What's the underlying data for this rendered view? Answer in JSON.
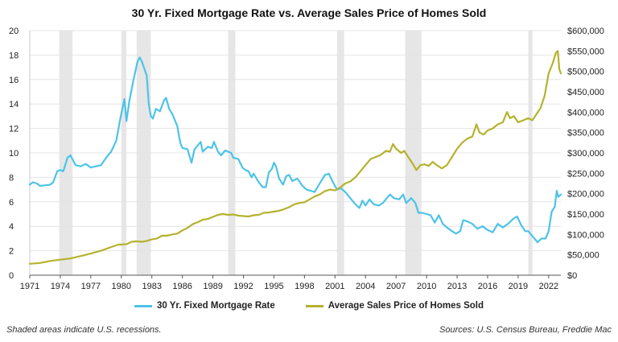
{
  "chart_data": {
    "type": "line",
    "title": "30 Yr. Fixed Mortgage Rate vs. Average Sales Price of Homes Sold",
    "footnote_left": "Shaded areas indicate U.S. recessions.",
    "footnote_right": "Sources: U.S. Census Bureau, Freddie Mac",
    "x_axis": {
      "range": [
        1971,
        2023.2
      ],
      "ticks": [
        "1971",
        "1974",
        "1977",
        "1980",
        "1983",
        "1986",
        "1989",
        "1992",
        "1995",
        "1998",
        "2001",
        "2004",
        "2007",
        "2010",
        "2013",
        "2016",
        "2019",
        "2022"
      ]
    },
    "y_left": {
      "range": [
        0,
        20
      ],
      "ticks": [
        "0",
        "2",
        "4",
        "6",
        "8",
        "10",
        "12",
        "14",
        "16",
        "18",
        "20"
      ]
    },
    "y_right": {
      "range": [
        0,
        600000
      ],
      "ticks": [
        "$0",
        "$50,000",
        "$100,000",
        "$150,000",
        "$200,000",
        "$250,000",
        "$300,000",
        "$350,000",
        "$400,000",
        "$450,000",
        "$500,000",
        "$550,000",
        "$600,000"
      ]
    },
    "recessions": [
      [
        1973.9,
        1975.2
      ],
      [
        1980.0,
        1980.5
      ],
      [
        1981.5,
        1982.9
      ],
      [
        1990.5,
        1991.2
      ],
      [
        2001.2,
        2001.9
      ],
      [
        2007.9,
        2009.5
      ],
      [
        2020.0,
        2020.4
      ]
    ],
    "grid": true,
    "legend_position": "bottom",
    "series": [
      {
        "name": "30 Yr. Fixed Mortgage Rate",
        "color": "#4dc3e8",
        "axis": "left",
        "points": [
          [
            1971.0,
            7.4
          ],
          [
            1971.3,
            7.6
          ],
          [
            1971.7,
            7.5
          ],
          [
            1972.0,
            7.3
          ],
          [
            1972.5,
            7.35
          ],
          [
            1973.0,
            7.4
          ],
          [
            1973.3,
            7.6
          ],
          [
            1973.7,
            8.5
          ],
          [
            1974.0,
            8.6
          ],
          [
            1974.3,
            8.5
          ],
          [
            1974.7,
            9.6
          ],
          [
            1975.0,
            9.8
          ],
          [
            1975.5,
            9.0
          ],
          [
            1976.0,
            8.9
          ],
          [
            1976.5,
            9.1
          ],
          [
            1977.0,
            8.8
          ],
          [
            1977.5,
            8.9
          ],
          [
            1978.0,
            9.0
          ],
          [
            1978.5,
            9.6
          ],
          [
            1979.0,
            10.1
          ],
          [
            1979.5,
            11.0
          ],
          [
            1979.9,
            12.8
          ],
          [
            1980.3,
            14.4
          ],
          [
            1980.5,
            12.6
          ],
          [
            1980.8,
            14.3
          ],
          [
            1981.2,
            16.0
          ],
          [
            1981.6,
            17.5
          ],
          [
            1981.8,
            17.8
          ],
          [
            1982.0,
            17.5
          ],
          [
            1982.5,
            16.3
          ],
          [
            1982.7,
            14.0
          ],
          [
            1982.9,
            13.0
          ],
          [
            1983.1,
            12.8
          ],
          [
            1983.4,
            13.6
          ],
          [
            1983.8,
            13.4
          ],
          [
            1984.2,
            14.3
          ],
          [
            1984.4,
            14.5
          ],
          [
            1984.7,
            13.6
          ],
          [
            1985.0,
            13.2
          ],
          [
            1985.5,
            12.2
          ],
          [
            1985.8,
            10.8
          ],
          [
            1986.0,
            10.4
          ],
          [
            1986.5,
            10.3
          ],
          [
            1986.9,
            9.2
          ],
          [
            1987.2,
            10.3
          ],
          [
            1987.8,
            10.9
          ],
          [
            1988.0,
            10.1
          ],
          [
            1988.5,
            10.5
          ],
          [
            1988.9,
            10.4
          ],
          [
            1989.1,
            10.9
          ],
          [
            1989.5,
            10.1
          ],
          [
            1989.8,
            9.8
          ],
          [
            1990.2,
            10.2
          ],
          [
            1990.8,
            10.0
          ],
          [
            1991.0,
            9.6
          ],
          [
            1991.5,
            9.5
          ],
          [
            1991.9,
            8.8
          ],
          [
            1992.2,
            8.6
          ],
          [
            1992.5,
            8.5
          ],
          [
            1992.8,
            8.0
          ],
          [
            1993.0,
            8.3
          ],
          [
            1993.5,
            7.6
          ],
          [
            1993.9,
            7.2
          ],
          [
            1994.2,
            7.2
          ],
          [
            1994.5,
            8.4
          ],
          [
            1994.8,
            8.7
          ],
          [
            1995.0,
            9.2
          ],
          [
            1995.2,
            8.9
          ],
          [
            1995.5,
            7.9
          ],
          [
            1995.9,
            7.4
          ],
          [
            1996.2,
            8.1
          ],
          [
            1996.5,
            8.2
          ],
          [
            1996.8,
            7.7
          ],
          [
            1997.3,
            7.9
          ],
          [
            1997.8,
            7.3
          ],
          [
            1998.2,
            7.0
          ],
          [
            1998.6,
            6.9
          ],
          [
            1999.0,
            6.8
          ],
          [
            1999.5,
            7.5
          ],
          [
            2000.0,
            8.2
          ],
          [
            2000.4,
            8.3
          ],
          [
            2000.8,
            7.6
          ],
          [
            2001.2,
            7.0
          ],
          [
            2001.6,
            7.1
          ],
          [
            2002.0,
            6.8
          ],
          [
            2002.5,
            6.3
          ],
          [
            2003.0,
            5.8
          ],
          [
            2003.4,
            5.5
          ],
          [
            2003.7,
            6.1
          ],
          [
            2004.0,
            5.7
          ],
          [
            2004.4,
            6.2
          ],
          [
            2004.8,
            5.8
          ],
          [
            2005.3,
            5.7
          ],
          [
            2005.7,
            5.9
          ],
          [
            2006.0,
            6.2
          ],
          [
            2006.4,
            6.6
          ],
          [
            2006.8,
            6.3
          ],
          [
            2007.3,
            6.2
          ],
          [
            2007.7,
            6.6
          ],
          [
            2008.0,
            5.9
          ],
          [
            2008.5,
            6.3
          ],
          [
            2008.9,
            5.9
          ],
          [
            2009.2,
            5.1
          ],
          [
            2009.6,
            5.1
          ],
          [
            2010.0,
            5.0
          ],
          [
            2010.4,
            4.9
          ],
          [
            2010.8,
            4.3
          ],
          [
            2011.2,
            4.9
          ],
          [
            2011.6,
            4.2
          ],
          [
            2012.0,
            3.9
          ],
          [
            2012.5,
            3.6
          ],
          [
            2012.9,
            3.4
          ],
          [
            2013.3,
            3.6
          ],
          [
            2013.6,
            4.5
          ],
          [
            2014.0,
            4.4
          ],
          [
            2014.5,
            4.2
          ],
          [
            2015.0,
            3.8
          ],
          [
            2015.5,
            4.0
          ],
          [
            2016.0,
            3.7
          ],
          [
            2016.5,
            3.5
          ],
          [
            2017.0,
            4.2
          ],
          [
            2017.5,
            3.9
          ],
          [
            2018.0,
            4.2
          ],
          [
            2018.5,
            4.6
          ],
          [
            2018.9,
            4.8
          ],
          [
            2019.3,
            4.1
          ],
          [
            2019.7,
            3.6
          ],
          [
            2020.0,
            3.6
          ],
          [
            2020.5,
            3.1
          ],
          [
            2020.9,
            2.7
          ],
          [
            2021.3,
            3.0
          ],
          [
            2021.7,
            3.0
          ],
          [
            2022.0,
            3.6
          ],
          [
            2022.3,
            5.2
          ],
          [
            2022.6,
            5.6
          ],
          [
            2022.8,
            6.9
          ],
          [
            2022.95,
            6.4
          ],
          [
            2023.2,
            6.6
          ]
        ]
      },
      {
        "name": "Average Sales Price of Homes Sold",
        "color": "#b5b22e",
        "axis": "right",
        "points": [
          [
            1971.0,
            28000
          ],
          [
            1972.0,
            30000
          ],
          [
            1973.0,
            35000
          ],
          [
            1974.0,
            38000
          ],
          [
            1975.0,
            41000
          ],
          [
            1976.0,
            47000
          ],
          [
            1977.0,
            53000
          ],
          [
            1978.0,
            60000
          ],
          [
            1979.0,
            69000
          ],
          [
            1979.7,
            75000
          ],
          [
            1980.5,
            76000
          ],
          [
            1981.0,
            82000
          ],
          [
            1981.5,
            83000
          ],
          [
            1982.0,
            82000
          ],
          [
            1982.5,
            84000
          ],
          [
            1983.0,
            88000
          ],
          [
            1983.5,
            90000
          ],
          [
            1984.0,
            97000
          ],
          [
            1984.5,
            97000
          ],
          [
            1985.0,
            100000
          ],
          [
            1985.5,
            102000
          ],
          [
            1986.0,
            110000
          ],
          [
            1986.5,
            116000
          ],
          [
            1987.0,
            125000
          ],
          [
            1987.5,
            130000
          ],
          [
            1988.0,
            136000
          ],
          [
            1988.5,
            138000
          ],
          [
            1989.0,
            143000
          ],
          [
            1989.5,
            148000
          ],
          [
            1990.0,
            150000
          ],
          [
            1990.5,
            148000
          ],
          [
            1991.0,
            149000
          ],
          [
            1991.5,
            146000
          ],
          [
            1992.0,
            145000
          ],
          [
            1992.5,
            144000
          ],
          [
            1993.0,
            147000
          ],
          [
            1993.5,
            148000
          ],
          [
            1994.0,
            153000
          ],
          [
            1994.5,
            154000
          ],
          [
            1995.0,
            156000
          ],
          [
            1995.5,
            158000
          ],
          [
            1996.0,
            162000
          ],
          [
            1996.5,
            167000
          ],
          [
            1997.0,
            174000
          ],
          [
            1997.5,
            177000
          ],
          [
            1998.0,
            179000
          ],
          [
            1998.5,
            186000
          ],
          [
            1999.0,
            193000
          ],
          [
            1999.5,
            198000
          ],
          [
            2000.0,
            206000
          ],
          [
            2000.5,
            210000
          ],
          [
            2001.0,
            208000
          ],
          [
            2001.5,
            215000
          ],
          [
            2002.0,
            225000
          ],
          [
            2002.5,
            230000
          ],
          [
            2003.0,
            240000
          ],
          [
            2003.5,
            255000
          ],
          [
            2004.0,
            270000
          ],
          [
            2004.5,
            285000
          ],
          [
            2005.0,
            290000
          ],
          [
            2005.5,
            295000
          ],
          [
            2006.0,
            305000
          ],
          [
            2006.4,
            303000
          ],
          [
            2006.7,
            322000
          ],
          [
            2007.0,
            310000
          ],
          [
            2007.5,
            300000
          ],
          [
            2007.8,
            305000
          ],
          [
            2008.2,
            290000
          ],
          [
            2008.6,
            275000
          ],
          [
            2009.0,
            258000
          ],
          [
            2009.4,
            270000
          ],
          [
            2009.8,
            272000
          ],
          [
            2010.2,
            268000
          ],
          [
            2010.6,
            278000
          ],
          [
            2011.0,
            270000
          ],
          [
            2011.5,
            262000
          ],
          [
            2012.0,
            270000
          ],
          [
            2012.5,
            290000
          ],
          [
            2013.0,
            310000
          ],
          [
            2013.5,
            325000
          ],
          [
            2014.0,
            335000
          ],
          [
            2014.5,
            340000
          ],
          [
            2014.9,
            370000
          ],
          [
            2015.2,
            350000
          ],
          [
            2015.6,
            345000
          ],
          [
            2016.0,
            355000
          ],
          [
            2016.5,
            360000
          ],
          [
            2017.0,
            370000
          ],
          [
            2017.5,
            375000
          ],
          [
            2017.9,
            400000
          ],
          [
            2018.2,
            385000
          ],
          [
            2018.6,
            390000
          ],
          [
            2019.0,
            375000
          ],
          [
            2019.5,
            380000
          ],
          [
            2020.0,
            385000
          ],
          [
            2020.4,
            380000
          ],
          [
            2020.8,
            395000
          ],
          [
            2021.2,
            410000
          ],
          [
            2021.6,
            440000
          ],
          [
            2022.0,
            495000
          ],
          [
            2022.4,
            520000
          ],
          [
            2022.7,
            545000
          ],
          [
            2022.9,
            550000
          ],
          [
            2023.05,
            505000
          ],
          [
            2023.2,
            495000
          ]
        ]
      }
    ]
  }
}
